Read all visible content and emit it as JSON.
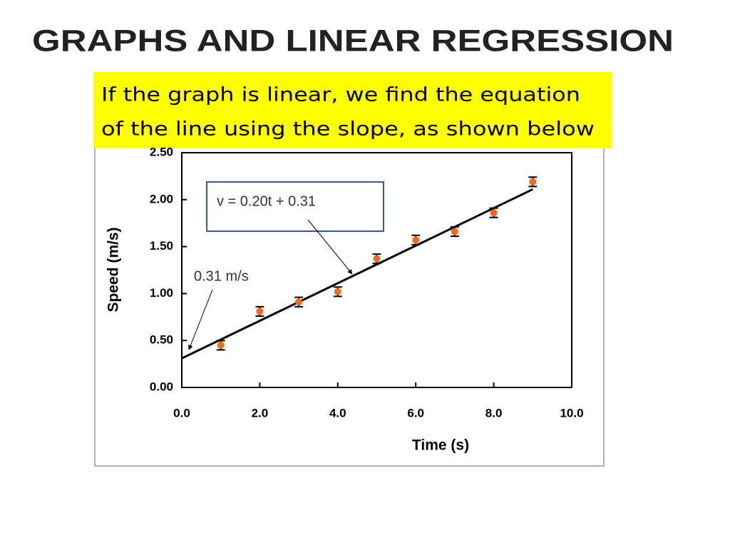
{
  "chart_data": {
    "type": "scatter",
    "title": "GRAPHS AND LINEAR REGRESSION",
    "callout_lines": [
      "If the graph is linear, we find the equation",
      "of the line using the slope, as shown below"
    ],
    "x_label": "Time (s)",
    "y_label": "Speed (m/s)",
    "x": [
      1,
      2,
      3,
      4,
      5,
      6,
      7,
      8,
      9
    ],
    "values": [
      0.45,
      0.81,
      0.91,
      1.02,
      1.37,
      1.57,
      1.66,
      1.86,
      2.19
    ],
    "errors": [
      0.05,
      0.05,
      0.05,
      0.05,
      0.05,
      0.05,
      0.05,
      0.05,
      0.05
    ],
    "color": "#f26b1d",
    "trendline": {
      "slope": 0.2,
      "intercept": 0.31,
      "x_end": 9,
      "color": "#000000"
    },
    "annotations": [
      "v = 0.20t + 0.31",
      "0.31 m/s"
    ],
    "xlim": [
      0,
      10
    ],
    "ylim": [
      0,
      2.5
    ],
    "xticks": [
      {
        "value": 0,
        "label": "0.0"
      },
      {
        "value": 2,
        "label": "2.0"
      },
      {
        "value": 4,
        "label": "4.0"
      },
      {
        "value": 6,
        "label": "6.0"
      },
      {
        "value": 8,
        "label": "8.0"
      },
      {
        "value": 10,
        "label": "10.0"
      }
    ],
    "yticks": [
      {
        "value": 0,
        "label": "0.00"
      },
      {
        "value": 0.5,
        "label": "0.50"
      },
      {
        "value": 1,
        "label": "1.00"
      },
      {
        "value": 1.5,
        "label": "1.50"
      },
      {
        "value": 2,
        "label": "2.00"
      },
      {
        "value": 2.5,
        "label": "2.50"
      }
    ],
    "grid": false
  }
}
